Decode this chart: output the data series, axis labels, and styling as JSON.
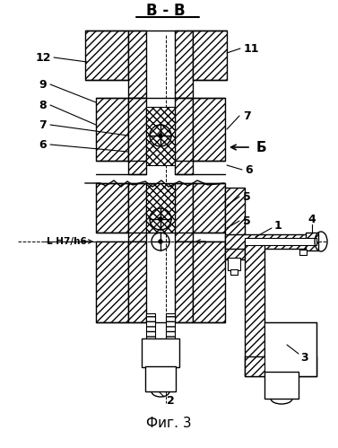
{
  "title": "В - В",
  "fig_label": "Фиг. 3",
  "bg_color": "#ffffff",
  "line_color": "#000000",
  "label_B": "Б",
  "label_LH": "L H7/h6",
  "figsize": [
    3.77,
    4.99
  ],
  "dpi": 100
}
